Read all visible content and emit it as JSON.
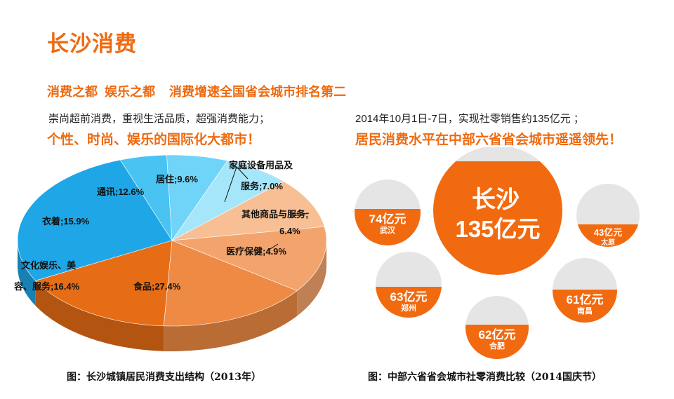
{
  "page": {
    "title": "长沙消费",
    "subtitle": "消费之都  娱乐之都    消费增速全国省会城市排名第二"
  },
  "left": {
    "description": "崇尚超前消费，重视生活品质，超强消费能力；",
    "highlight": "个性、时尚、娱乐的国际化大都市！",
    "caption": "图：长沙城镇居民消费支出结构（2013年）"
  },
  "right": {
    "description": "2014年10月1日-7日，实现社零销售约135亿元  ；",
    "highlight": "居民消费水平在中部六省省会城市遥遥领先！",
    "caption": "图：中部六省省会城市社零消费比较（2014国庆节）"
  },
  "pie_chart": {
    "type": "pie",
    "title": "",
    "slices": [
      {
        "label_lines": [
          "食品;",
          "27.4%"
        ],
        "label": "食品",
        "value": 27.4,
        "color": "#1fa6e6"
      },
      {
        "label_lines": [
          "医疗保健;",
          "4.9%"
        ],
        "label": "医疗保健",
        "value": 4.9,
        "color": "#48c3f2"
      },
      {
        "label_lines": [
          "其他商品与服务;",
          "6.4%"
        ],
        "label": "其他商品与服务",
        "value": 6.4,
        "color": "#6fd4f8"
      },
      {
        "label_lines": [
          "家庭设备用品及",
          "服务;7.0%"
        ],
        "label": "家庭设备用品及服务",
        "value": 7.0,
        "color": "#a6e6fb"
      },
      {
        "label_lines": [
          "居住;",
          "9.6%"
        ],
        "label": "居住",
        "value": 9.6,
        "color": "#f7bf93"
      },
      {
        "label_lines": [
          "通讯;",
          "12.6%"
        ],
        "label": "通讯",
        "value": 12.6,
        "color": "#f3a46c"
      },
      {
        "label_lines": [
          "衣着;",
          "15.9%"
        ],
        "label": "衣着",
        "value": 15.9,
        "color": "#ee8a44"
      },
      {
        "label_lines": [
          "文化娱乐、美",
          "容、服务;16.4%"
        ],
        "label": "文化娱乐、美容、服务",
        "value": 16.4,
        "color": "#e66d16"
      }
    ]
  },
  "bubble_chart": {
    "type": "bubble",
    "center": {
      "city": "长沙",
      "value_label": "135亿元",
      "value": 135
    },
    "cities": [
      {
        "city": "武汉",
        "value_label": "74亿元",
        "value": 74
      },
      {
        "city": "太原",
        "value_label": "43亿元",
        "value": 43
      },
      {
        "city": "郑州",
        "value_label": "63亿元",
        "value": 63
      },
      {
        "city": "南昌",
        "value_label": "61亿元",
        "value": 61
      },
      {
        "city": "合肥",
        "value_label": "62亿元",
        "value": 62
      }
    ],
    "colors": {
      "orange": "#f26a10",
      "gray": "#e5e5e5",
      "text": "#ffffff"
    }
  }
}
